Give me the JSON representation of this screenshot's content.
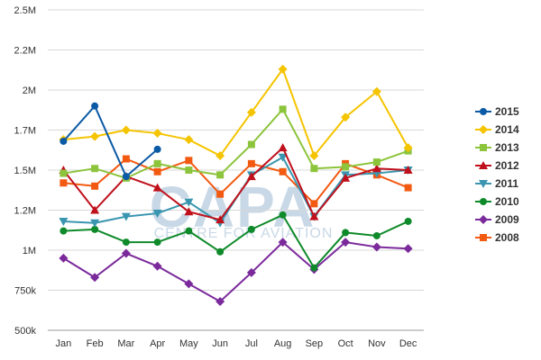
{
  "chart_data": {
    "type": "line",
    "categories": [
      "Jan",
      "Feb",
      "Mar",
      "Apr",
      "May",
      "Jun",
      "Jul",
      "Aug",
      "Sep",
      "Oct",
      "Nov",
      "Dec"
    ],
    "y_ticks": [
      500000,
      750000,
      1000000,
      1250000,
      1500000,
      1750000,
      2000000,
      2250000,
      2500000
    ],
    "y_tick_labels": [
      "500k",
      "750k",
      "1M",
      "1.2M",
      "1.5M",
      "1.7M",
      "2M",
      "2.2M",
      "2.5M"
    ],
    "ylim": [
      500000,
      2500000
    ],
    "grid": true,
    "legend_position": "right",
    "watermark": {
      "main": "CAPA",
      "sub": "CENTRE FOR AVIATION"
    },
    "series": [
      {
        "name": "2015",
        "color": "#0b5aa6",
        "marker": "circle",
        "values": [
          1680000,
          1900000,
          1460000,
          1630000,
          null,
          null,
          null,
          null,
          null,
          null,
          null,
          null
        ]
      },
      {
        "name": "2014",
        "color": "#f5c400",
        "marker": "diamond",
        "values": [
          1690000,
          1710000,
          1750000,
          1730000,
          1690000,
          1590000,
          1860000,
          2130000,
          1590000,
          1830000,
          1990000,
          1640000
        ]
      },
      {
        "name": "2013",
        "color": "#8cc43c",
        "marker": "square",
        "values": [
          1480000,
          1510000,
          1450000,
          1540000,
          1500000,
          1470000,
          1660000,
          1880000,
          1510000,
          1520000,
          1550000,
          1620000
        ]
      },
      {
        "name": "2012",
        "color": "#c0101c",
        "marker": "triangle-up",
        "values": [
          1500000,
          1250000,
          1460000,
          1390000,
          1240000,
          1190000,
          1460000,
          1640000,
          1210000,
          1450000,
          1510000,
          1500000
        ]
      },
      {
        "name": "2011",
        "color": "#3a96b0",
        "marker": "triangle-down",
        "values": [
          1180000,
          1170000,
          1210000,
          1230000,
          1300000,
          1170000,
          1470000,
          1580000,
          1210000,
          1470000,
          1480000,
          1500000
        ]
      },
      {
        "name": "2010",
        "color": "#0f8a2a",
        "marker": "circle",
        "values": [
          1120000,
          1130000,
          1050000,
          1050000,
          1120000,
          990000,
          1130000,
          1220000,
          890000,
          1110000,
          1090000,
          1180000
        ]
      },
      {
        "name": "2009",
        "color": "#7b2a9c",
        "marker": "diamond",
        "values": [
          950000,
          830000,
          980000,
          900000,
          790000,
          680000,
          860000,
          1050000,
          880000,
          1050000,
          1020000,
          1010000
        ]
      },
      {
        "name": "2008",
        "color": "#f25a12",
        "marker": "square",
        "values": [
          1420000,
          1400000,
          1570000,
          1490000,
          1560000,
          1350000,
          1540000,
          1490000,
          1290000,
          1540000,
          1470000,
          1390000
        ]
      }
    ]
  }
}
